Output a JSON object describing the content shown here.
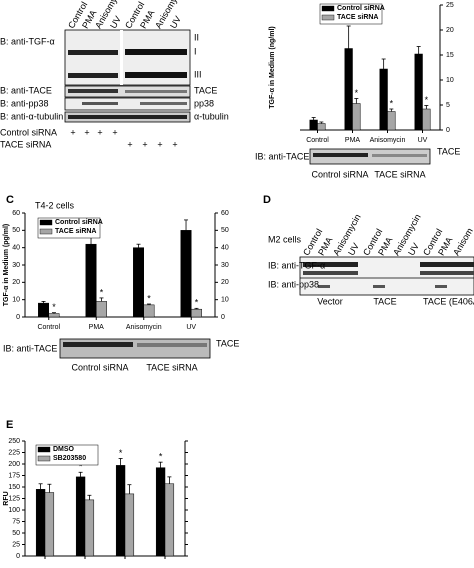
{
  "figure": {
    "panel_a": {
      "columns": [
        "Control",
        "PMA",
        "Anisomycin",
        "UV",
        "Control",
        "PMA",
        "Anisomycin",
        "UV"
      ],
      "rows": [
        {
          "label": "B: anti-TGF-α",
          "bands": [
            "II",
            "I",
            "III"
          ]
        },
        {
          "label": "B: anti-TACE",
          "bands": [
            "TACE"
          ]
        },
        {
          "label": "B: anti-pp38",
          "bands": [
            "pp38"
          ]
        },
        {
          "label": "B: anti-α-tubulin",
          "bands": [
            "α-tubulin"
          ]
        }
      ],
      "conditions": [
        {
          "label": "Control siRNA",
          "signs": [
            "+",
            "+",
            "+",
            "+"
          ]
        },
        {
          "label": "TACE siRNA",
          "signs": [
            "+",
            "+",
            "+",
            "+"
          ]
        }
      ]
    },
    "panel_b_blot": {
      "label": "IB: anti-TACE",
      "band": "TACE",
      "groups": [
        "Control siRNA",
        "TACE siRNA"
      ]
    },
    "panel_c_blot": {
      "label": "IB: anti-TACE",
      "band": "TACE",
      "groups": [
        "Control siRNA",
        "TACE siRNA"
      ]
    },
    "panel_d": {
      "label": "D",
      "cells": "M2 cells",
      "columns": [
        "Control",
        "PMA",
        "Anisomycin",
        "UV",
        "Control",
        "PMA",
        "Anisomycin",
        "UV",
        "Control",
        "PMA",
        "Anisom"
      ],
      "rows": [
        "IB: anti-TGF-α",
        "IB: anti-pp38"
      ],
      "groups": [
        "Vector",
        "TACE",
        "TACE (E406A"
      ]
    },
    "panel_c_label": "C",
    "panel_e_label": "E"
  },
  "chart_data": [
    {
      "type": "bar",
      "y_label": "TGF-α in Medium (ng/ml)",
      "categories": [
        "Control",
        "PMA",
        "Anisomycin",
        "UV"
      ],
      "series": [
        {
          "name": "Control siRNA",
          "color": "#000000",
          "values": [
            2,
            16.3,
            12.2,
            15.2
          ],
          "errors": [
            0.5,
            4.5,
            2,
            1.5
          ],
          "labels": [
            null,
            null,
            null,
            null
          ]
        },
        {
          "name": "TACE siRNA",
          "color": "#a6a6a6",
          "values": [
            1.3,
            5.3,
            3.7,
            4.2
          ],
          "errors": [
            0.3,
            1,
            0.5,
            0.7
          ],
          "labels": [
            null,
            "*",
            "*",
            "*"
          ]
        }
      ],
      "ylim": [
        0,
        25
      ],
      "yticks": [
        0,
        5,
        10,
        15,
        20,
        25
      ]
    },
    {
      "type": "bar",
      "title": "T4-2 cells",
      "y_label": "TGF-α in Medium (pg/ml)",
      "categories": [
        "Control",
        "PMA",
        "Anisomycin",
        "UV"
      ],
      "series": [
        {
          "name": "Control siRNA",
          "color": "#000000",
          "values": [
            8,
            42,
            40,
            50
          ],
          "errors": [
            1,
            4,
            2,
            6
          ],
          "labels": [
            null,
            null,
            null,
            null
          ]
        },
        {
          "name": "TACE siRNA",
          "color": "#a6a6a6",
          "values": [
            2,
            9,
            7,
            4.5
          ],
          "errors": [
            0.5,
            2,
            0.5,
            0.5
          ],
          "labels": [
            "*",
            "*",
            "*",
            "*"
          ]
        }
      ],
      "ylim": [
        0,
        60
      ],
      "yticks": [
        0,
        10,
        20,
        30,
        40,
        50,
        60
      ]
    },
    {
      "type": "bar",
      "y_label": "RFU",
      "categories": [
        null,
        null,
        null,
        null
      ],
      "series": [
        {
          "name": "DMSO",
          "color": "#000000",
          "values": [
            145,
            172,
            197,
            192
          ],
          "errors": [
            12,
            10,
            15,
            12
          ],
          "labels": [
            null,
            "*",
            "*",
            "*"
          ]
        },
        {
          "name": "SB203580",
          "color": "#a6a6a6",
          "values": [
            138,
            122,
            135,
            157
          ],
          "errors": [
            18,
            10,
            20,
            15
          ],
          "labels": [
            null,
            null,
            null,
            null
          ]
        }
      ],
      "ylim": [
        0,
        250
      ],
      "yticks": [
        0,
        25,
        50,
        75,
        100,
        125,
        150,
        175,
        200,
        225,
        250
      ]
    }
  ]
}
